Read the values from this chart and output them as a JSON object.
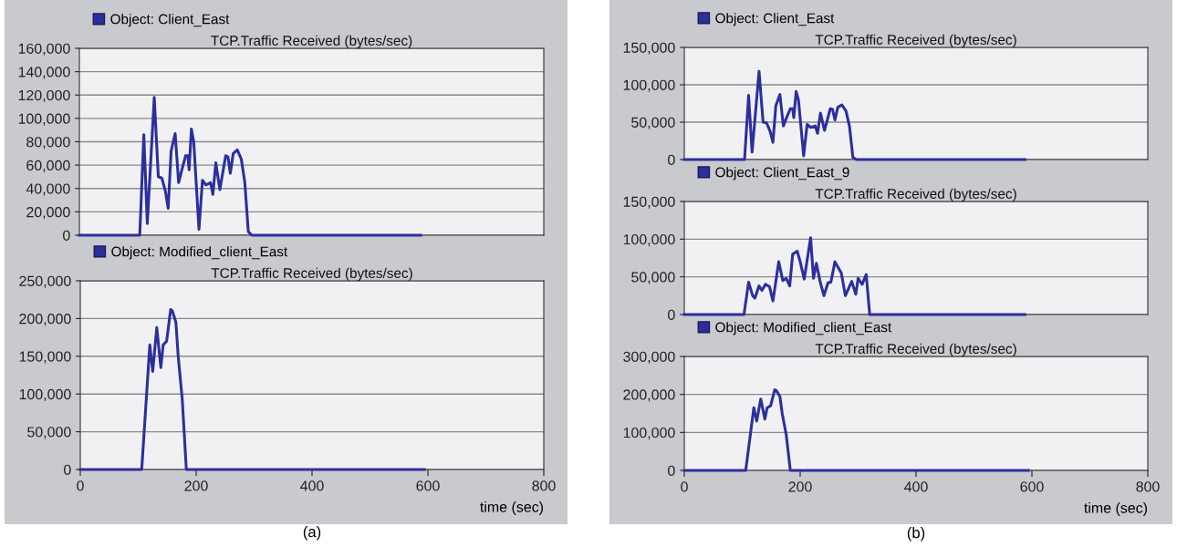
{
  "chart_data": [
    {
      "type": "line",
      "title": "TCP.Traffic Received (bytes/sec)",
      "legend": "top left",
      "grid": "y",
      "tick_labels": "y",
      "marker": "none",
      "line_style": "solid",
      "xlim": [
        0,
        800
      ],
      "xticks": [
        0,
        200,
        400,
        600,
        800
      ],
      "ylim": [
        0,
        160000
      ],
      "yticks": [
        0,
        {
          "value": 20000,
          "label": "20,000"
        },
        {
          "value": 40000,
          "label": "40,000"
        },
        {
          "value": 60000,
          "label": "60,000"
        },
        {
          "value": 80000,
          "label": "80,000"
        },
        {
          "value": 100000,
          "label": "100,000"
        },
        {
          "value": 120000,
          "label": "120,000"
        },
        {
          "value": 140000,
          "label": "140,000"
        },
        {
          "value": 160000,
          "label": "160,000"
        }
      ],
      "series": [
        {
          "name": "Object: Client_East",
          "color": "#2b2f9e",
          "x": [
            0,
            104,
            111,
            117,
            129,
            136,
            142,
            148,
            153,
            158,
            165,
            171,
            176,
            183,
            187,
            189,
            193,
            197,
            206,
            212,
            218,
            226,
            230,
            235,
            242,
            252,
            256,
            260,
            265,
            272,
            279,
            285,
            291,
            297,
            588
          ],
          "values": [
            0,
            0,
            86000,
            10000,
            118000,
            50000,
            49000,
            38000,
            23000,
            72000,
            87000,
            45000,
            55000,
            68000,
            68000,
            56000,
            91000,
            80000,
            5000,
            47000,
            43000,
            45000,
            35000,
            62000,
            39000,
            68000,
            67000,
            53000,
            70000,
            73000,
            65000,
            45000,
            3000,
            0,
            0
          ]
        }
      ]
    },
    {
      "type": "line",
      "title": "TCP.Traffic Received (bytes/sec)",
      "xlabel": "time (sec)",
      "legend": "top left",
      "grid": "y",
      "marker": "none",
      "line_style": "solid",
      "xlim": [
        0,
        800
      ],
      "xticks": [
        0,
        200,
        400,
        600,
        800
      ],
      "ylim": [
        0,
        250000
      ],
      "yticks": [
        0,
        {
          "value": 50000,
          "label": "50,000"
        },
        {
          "value": 100000,
          "label": "100,000"
        },
        {
          "value": 150000,
          "label": "150,000"
        },
        {
          "value": 200000,
          "label": "200,000"
        },
        {
          "value": 250000,
          "label": "250,000"
        }
      ],
      "annotations": [
        "(a)"
      ],
      "series": [
        {
          "name": "Object: Modified_client_East",
          "color": "#2b2f9e",
          "x": [
            0,
            106,
            120,
            125,
            132,
            139,
            143,
            149,
            156,
            159,
            165,
            169,
            176,
            183,
            594
          ],
          "values": [
            0,
            0,
            165000,
            130000,
            188000,
            135000,
            165000,
            170000,
            212000,
            210000,
            195000,
            150000,
            93000,
            0,
            0
          ]
        }
      ]
    },
    {
      "type": "line",
      "title": "TCP.Traffic Received (bytes/sec)",
      "legend": "top left",
      "grid": "y",
      "tick_labels": "y",
      "marker": "none",
      "line_style": "solid",
      "xlim": [
        0,
        800
      ],
      "xticks": [
        0,
        200,
        400,
        600,
        800
      ],
      "ylim": [
        0,
        150000
      ],
      "yticks": [
        0,
        {
          "value": 50000,
          "label": "50,000"
        },
        {
          "value": 100000,
          "label": "100,000"
        },
        {
          "value": 150000,
          "label": "150,000"
        }
      ],
      "series": [
        {
          "name": "Object: Client_East",
          "color": "#2b2f9e",
          "x": [
            0,
            104,
            111,
            117,
            129,
            136,
            142,
            148,
            153,
            158,
            165,
            171,
            176,
            183,
            187,
            189,
            193,
            197,
            206,
            212,
            218,
            226,
            230,
            235,
            242,
            252,
            256,
            260,
            265,
            272,
            279,
            285,
            291,
            297,
            588
          ],
          "values": [
            0,
            0,
            86000,
            10000,
            118000,
            50000,
            49000,
            38000,
            23000,
            72000,
            87000,
            45000,
            55000,
            68000,
            68000,
            56000,
            91000,
            80000,
            5000,
            47000,
            43000,
            45000,
            35000,
            62000,
            39000,
            68000,
            67000,
            53000,
            70000,
            73000,
            65000,
            45000,
            3000,
            0,
            0
          ]
        }
      ]
    },
    {
      "type": "line",
      "title": "TCP.Traffic Received (bytes/sec)",
      "legend": "top left",
      "grid": "y",
      "tick_labels": "y",
      "marker": "none",
      "line_style": "solid",
      "xlim": [
        0,
        800
      ],
      "xticks": [
        0,
        200,
        400,
        600,
        800
      ],
      "ylim": [
        0,
        150000
      ],
      "yticks": [
        0,
        {
          "value": 50000,
          "label": "50,000"
        },
        {
          "value": 100000,
          "label": "100,000"
        },
        {
          "value": 150000,
          "label": "150,000"
        }
      ],
      "series": [
        {
          "name": "Object: Client_East_9",
          "color": "#2b2f9e",
          "x": [
            0,
            103,
            111,
            118,
            122,
            129,
            134,
            140,
            147,
            153,
            163,
            170,
            176,
            182,
            187,
            195,
            200,
            207,
            218,
            223,
            228,
            234,
            241,
            248,
            253,
            260,
            271,
            278,
            289,
            296,
            300,
            307,
            314,
            320,
            588
          ],
          "values": [
            0,
            0,
            43000,
            25000,
            22000,
            38000,
            32000,
            40000,
            37000,
            18000,
            70000,
            45000,
            48000,
            38000,
            80000,
            84000,
            70000,
            47000,
            102000,
            48000,
            68000,
            45000,
            25000,
            42000,
            43000,
            70000,
            55000,
            25000,
            44000,
            27000,
            48000,
            40000,
            53000,
            0,
            0
          ]
        }
      ]
    },
    {
      "type": "line",
      "title": "TCP.Traffic Received (bytes/sec)",
      "xlabel": "time (sec)",
      "legend": "top left",
      "grid": "y",
      "marker": "none",
      "line_style": "solid",
      "xlim": [
        0,
        800
      ],
      "xticks": [
        0,
        200,
        400,
        600,
        800
      ],
      "ylim": [
        0,
        300000
      ],
      "yticks": [
        0,
        {
          "value": 100000,
          "label": "100,000"
        },
        {
          "value": 200000,
          "label": "200,000"
        },
        {
          "value": 300000,
          "label": "300,000"
        }
      ],
      "annotations": [
        "(b)"
      ],
      "series": [
        {
          "name": "Object: Modified_client_East",
          "color": "#2b2f9e",
          "x": [
            0,
            106,
            120,
            125,
            132,
            139,
            143,
            149,
            156,
            159,
            165,
            169,
            176,
            183,
            594
          ],
          "values": [
            0,
            0,
            165000,
            130000,
            188000,
            135000,
            165000,
            170000,
            212000,
            210000,
            195000,
            150000,
            93000,
            0,
            0
          ]
        }
      ]
    }
  ]
}
